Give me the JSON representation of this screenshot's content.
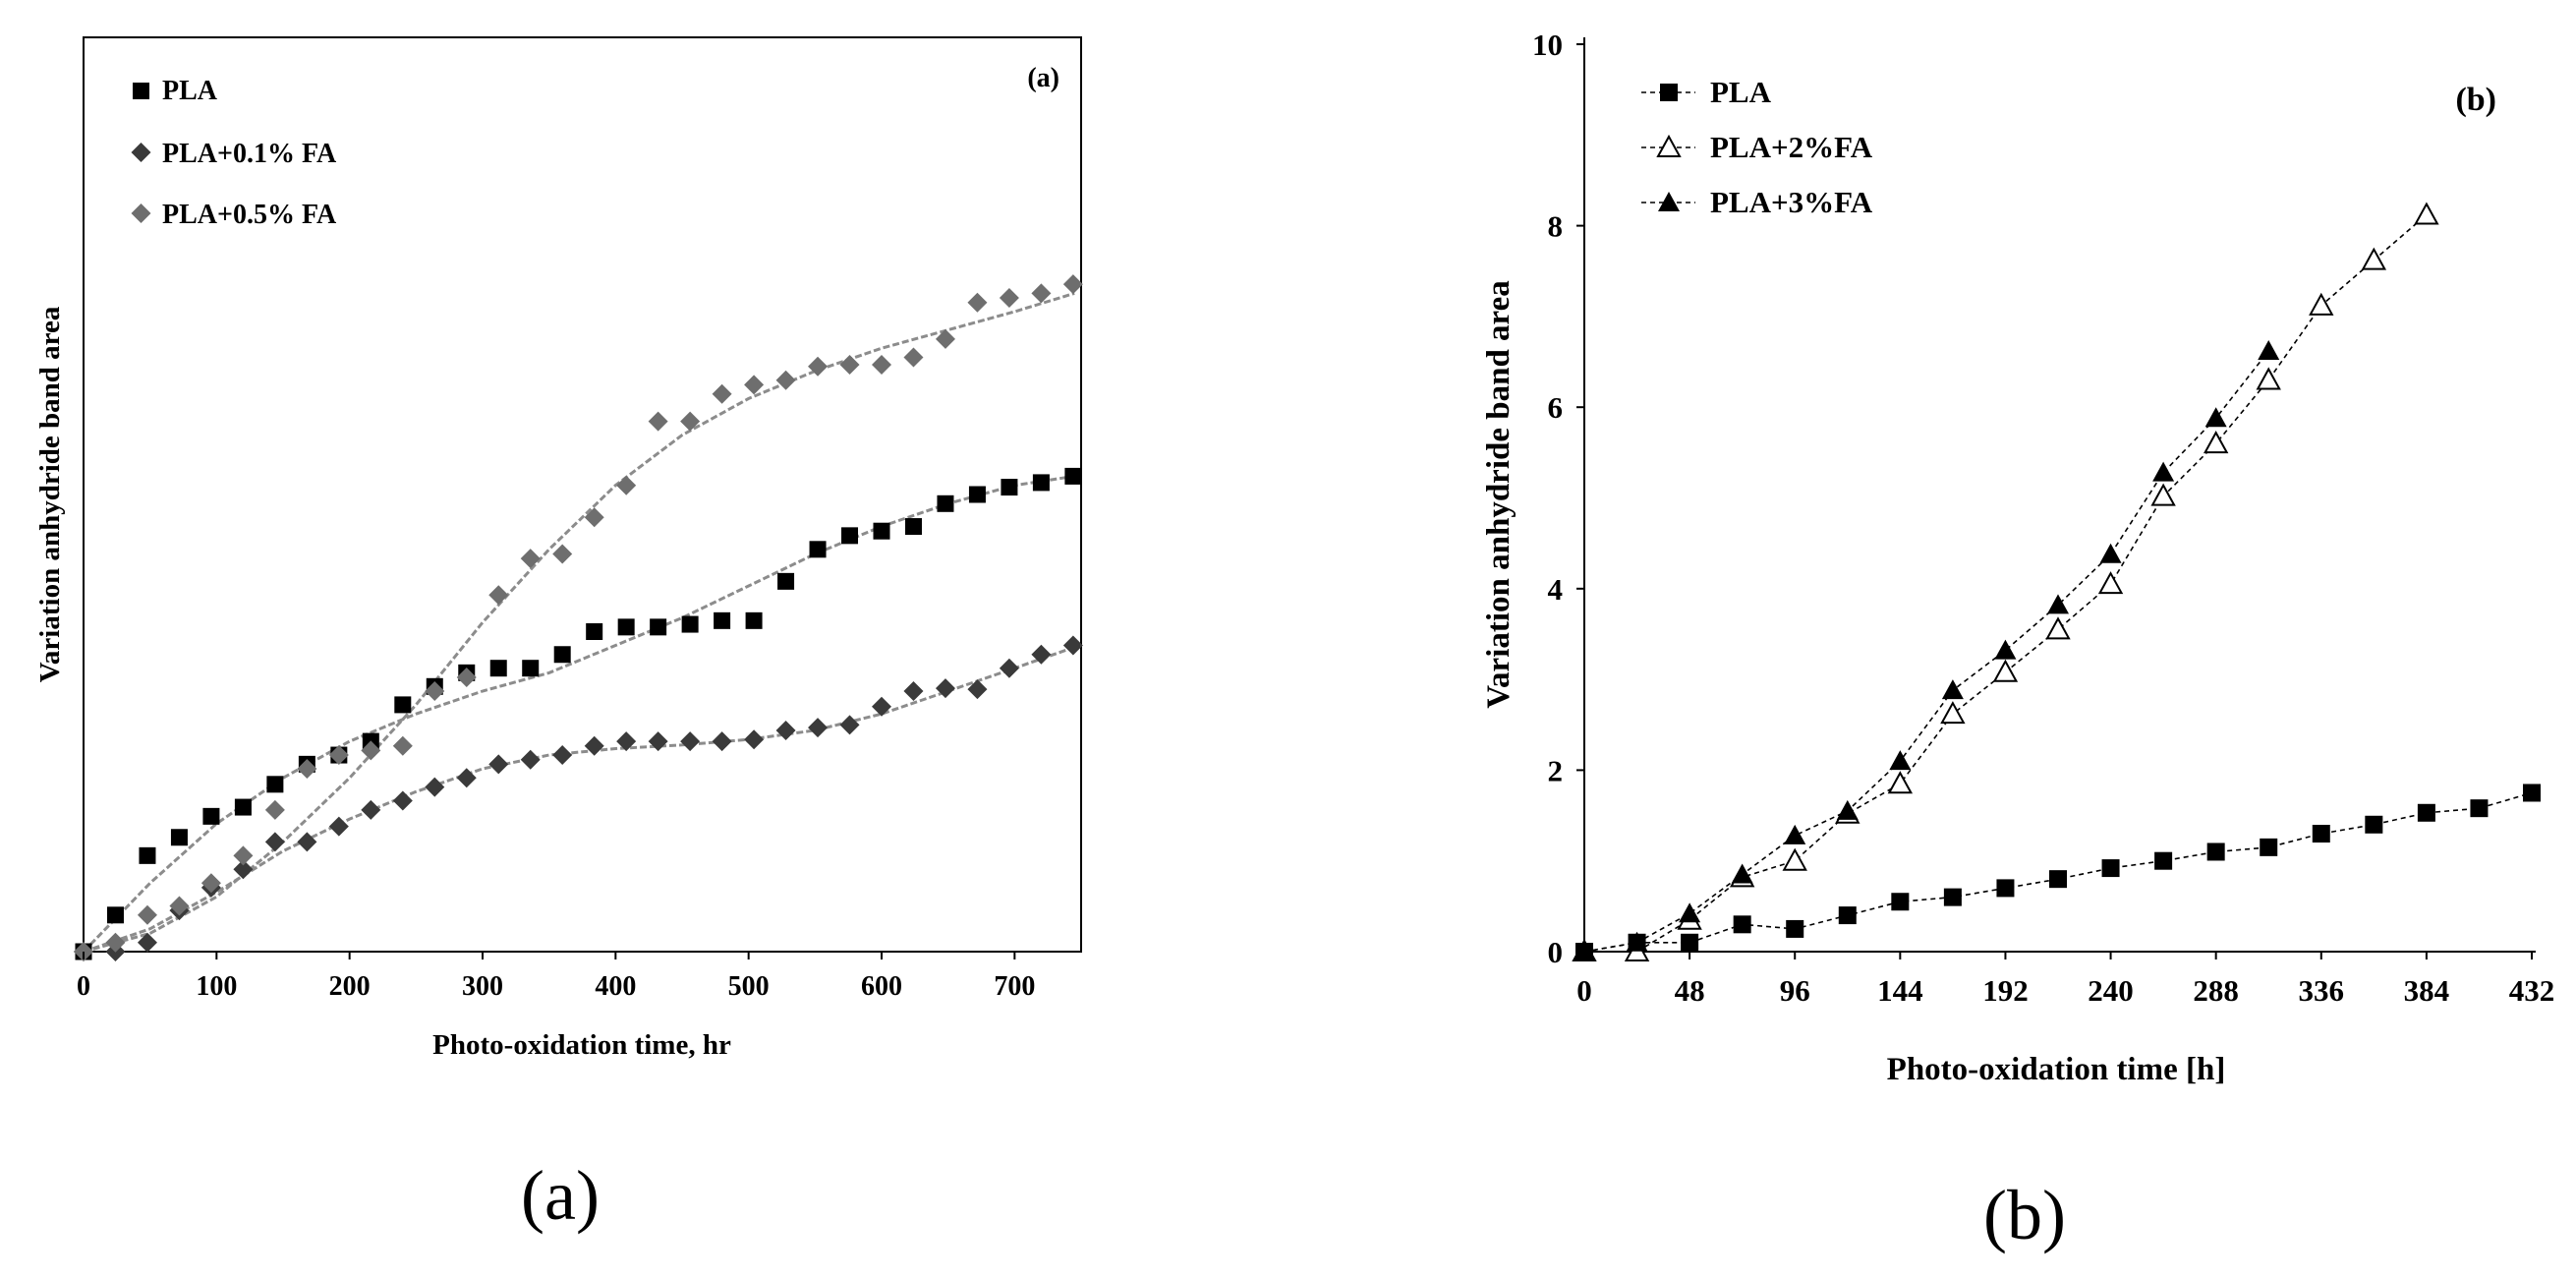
{
  "colors": {
    "black": "#000000",
    "dark_gray": "#3a3a3a",
    "mid_gray": "#6e6e6e",
    "fit_line": "#8c8c8c"
  },
  "panel_labels": {
    "a": "(a)",
    "b": "(b)"
  },
  "chart_data": [
    {
      "type": "scatter",
      "title": "",
      "corner_label": "(a)",
      "xlabel": "Photo-oxidation time, hr",
      "ylabel": "Variation anhydride band area",
      "xlim": [
        0,
        750
      ],
      "ylim": [
        0,
        1
      ],
      "x_ticks": [
        "0",
        "100",
        "200",
        "300",
        "400",
        "500",
        "600",
        "700"
      ],
      "y_ticks_shown": false,
      "grid": false,
      "legend_position": "top-left",
      "series": [
        {
          "name": "PLA",
          "marker": "square",
          "color": "#000000",
          "x": [
            0,
            24,
            48,
            72,
            96,
            120,
            144,
            168,
            192,
            216,
            240,
            264,
            288,
            312,
            336,
            360,
            384,
            408,
            432,
            456,
            480,
            504,
            528,
            552,
            576,
            600,
            624,
            648,
            672,
            696,
            720,
            744
          ],
          "y": [
            0,
            0.04,
            0.105,
            0.125,
            0.148,
            0.158,
            0.183,
            0.205,
            0.215,
            0.23,
            0.27,
            0.29,
            0.305,
            0.31,
            0.31,
            0.325,
            0.35,
            0.355,
            0.355,
            0.358,
            0.362,
            0.362,
            0.405,
            0.44,
            0.455,
            0.46,
            0.465,
            0.49,
            0.5,
            0.508,
            0.513,
            0.52
          ],
          "trend": [
            [
              0,
              0
            ],
            [
              50,
              0.075
            ],
            [
              100,
              0.14
            ],
            [
              150,
              0.19
            ],
            [
              200,
              0.23
            ],
            [
              250,
              0.26
            ],
            [
              300,
              0.285
            ],
            [
              350,
              0.305
            ],
            [
              400,
              0.335
            ],
            [
              450,
              0.365
            ],
            [
              500,
              0.4
            ],
            [
              550,
              0.435
            ],
            [
              600,
              0.465
            ],
            [
              650,
              0.49
            ],
            [
              700,
              0.51
            ],
            [
              745,
              0.52
            ]
          ]
        },
        {
          "name": "PLA+0.1% FA",
          "marker": "diamond",
          "color": "#3a3a3a",
          "x": [
            0,
            24,
            48,
            72,
            96,
            120,
            144,
            168,
            192,
            216,
            240,
            264,
            288,
            312,
            336,
            360,
            384,
            408,
            432,
            456,
            480,
            504,
            528,
            552,
            576,
            600,
            624,
            648,
            672,
            696,
            720,
            744
          ],
          "y": [
            0,
            0,
            0.01,
            0.045,
            0.07,
            0.09,
            0.12,
            0.12,
            0.137,
            0.155,
            0.165,
            0.18,
            0.19,
            0.205,
            0.21,
            0.215,
            0.225,
            0.23,
            0.23,
            0.23,
            0.23,
            0.232,
            0.242,
            0.245,
            0.248,
            0.268,
            0.285,
            0.288,
            0.287,
            0.31,
            0.325,
            0.335
          ],
          "trend": [
            [
              0,
              0
            ],
            [
              50,
              0.025
            ],
            [
              100,
              0.065
            ],
            [
              150,
              0.11
            ],
            [
              200,
              0.145
            ],
            [
              250,
              0.175
            ],
            [
              300,
              0.2
            ],
            [
              350,
              0.215
            ],
            [
              400,
              0.222
            ],
            [
              450,
              0.226
            ],
            [
              500,
              0.232
            ],
            [
              550,
              0.242
            ],
            [
              600,
              0.26
            ],
            [
              650,
              0.285
            ],
            [
              700,
              0.31
            ],
            [
              745,
              0.333
            ]
          ]
        },
        {
          "name": "PLA+0.5% FA",
          "marker": "diamond",
          "color": "#6e6e6e",
          "x": [
            0,
            24,
            48,
            72,
            96,
            120,
            144,
            168,
            192,
            216,
            240,
            264,
            288,
            312,
            336,
            360,
            384,
            408,
            432,
            456,
            480,
            504,
            528,
            552,
            576,
            600,
            624,
            648,
            672,
            696,
            720,
            744
          ],
          "y": [
            0,
            0.01,
            0.04,
            0.05,
            0.075,
            0.105,
            0.155,
            0.2,
            0.215,
            0.22,
            0.225,
            0.285,
            0.3,
            0.39,
            0.43,
            0.435,
            0.475,
            0.51,
            0.58,
            0.58,
            0.61,
            0.62,
            0.625,
            0.64,
            0.642,
            0.642,
            0.65,
            0.67,
            0.71,
            0.715,
            0.72,
            0.73
          ],
          "trend": [
            [
              0,
              0
            ],
            [
              50,
              0.02
            ],
            [
              100,
              0.06
            ],
            [
              150,
              0.12
            ],
            [
              200,
              0.19
            ],
            [
              250,
              0.27
            ],
            [
              300,
              0.36
            ],
            [
              350,
              0.44
            ],
            [
              400,
              0.51
            ],
            [
              450,
              0.565
            ],
            [
              500,
              0.605
            ],
            [
              550,
              0.635
            ],
            [
              600,
              0.66
            ],
            [
              650,
              0.68
            ],
            [
              700,
              0.7
            ],
            [
              745,
              0.72
            ]
          ]
        }
      ]
    },
    {
      "type": "line",
      "title": "",
      "corner_label": "(b)",
      "xlabel": "Photo-oxidation time [h]",
      "ylabel": "Variation anhydride band area",
      "xlim": [
        0,
        432
      ],
      "ylim": [
        0,
        10
      ],
      "x_ticks": [
        "0",
        "48",
        "96",
        "144",
        "192",
        "240",
        "288",
        "336",
        "384",
        "432"
      ],
      "y_ticks": [
        "0",
        "2",
        "4",
        "6",
        "8",
        "10"
      ],
      "grid": false,
      "legend_position": "top-left",
      "series": [
        {
          "name": "PLA",
          "marker": "filled-square",
          "line_style": "dashed",
          "x": [
            0,
            24,
            48,
            72,
            96,
            120,
            144,
            168,
            192,
            216,
            240,
            264,
            288,
            312,
            336,
            360,
            384,
            408,
            432
          ],
          "values": [
            0,
            0.1,
            0.1,
            0.3,
            0.25,
            0.4,
            0.55,
            0.6,
            0.7,
            0.8,
            0.92,
            1.0,
            1.1,
            1.15,
            1.3,
            1.4,
            1.53,
            1.58,
            1.75
          ]
        },
        {
          "name": "PLA+2%FA",
          "marker": "open-triangle",
          "line_style": "dashed",
          "x": [
            0,
            24,
            48,
            72,
            96,
            120,
            144,
            168,
            192,
            216,
            240,
            264,
            288,
            312,
            336,
            360,
            384
          ],
          "values": [
            0,
            0,
            0.35,
            0.82,
            1.0,
            1.52,
            1.85,
            2.62,
            3.08,
            3.55,
            4.05,
            5.02,
            5.6,
            6.3,
            7.12,
            7.62,
            8.12
          ]
        },
        {
          "name": "PLA+3%FA",
          "marker": "filled-triangle",
          "line_style": "dashed",
          "x": [
            0,
            24,
            48,
            72,
            96,
            120,
            144,
            168,
            192,
            216,
            240,
            264,
            288,
            312
          ],
          "values": [
            0,
            0.1,
            0.42,
            0.85,
            1.28,
            1.55,
            2.1,
            2.88,
            3.32,
            3.82,
            4.38,
            5.28,
            5.88,
            6.62
          ]
        }
      ]
    }
  ]
}
